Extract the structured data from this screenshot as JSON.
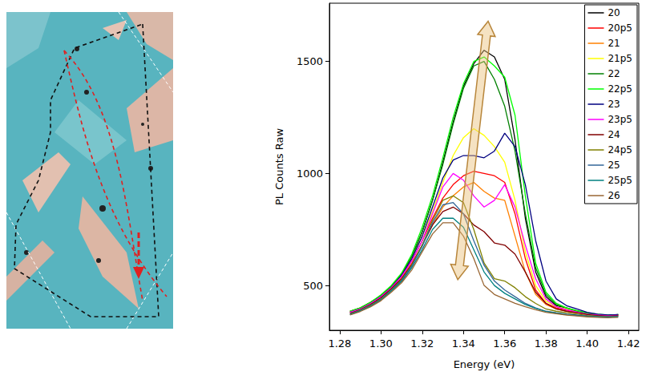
{
  "chart_data": {
    "type": "line",
    "x_label": "Energy (eV)",
    "y_label": "PL Counts Raw",
    "x": [
      1.285,
      1.29,
      1.295,
      1.3,
      1.305,
      1.31,
      1.315,
      1.32,
      1.325,
      1.33,
      1.335,
      1.34,
      1.345,
      1.35,
      1.355,
      1.36,
      1.365,
      1.37,
      1.375,
      1.38,
      1.385,
      1.39,
      1.395,
      1.4,
      1.405,
      1.41,
      1.415
    ],
    "series": [
      {
        "name": "20",
        "color": "#000000",
        "values": [
          385,
          400,
          425,
          455,
          495,
          550,
          630,
          740,
          880,
          1050,
          1230,
          1390,
          1490,
          1550,
          1520,
          1420,
          1150,
          800,
          560,
          450,
          410,
          400,
          385,
          375,
          370,
          365,
          370
        ]
      },
      {
        "name": "20p5",
        "color": "#ff0000",
        "values": [
          380,
          395,
          420,
          450,
          490,
          540,
          610,
          700,
          800,
          890,
          950,
          990,
          1010,
          1000,
          990,
          960,
          820,
          620,
          480,
          420,
          400,
          390,
          380,
          372,
          368,
          365,
          368
        ]
      },
      {
        "name": "21",
        "color": "#ff8000",
        "values": [
          380,
          395,
          418,
          448,
          485,
          535,
          600,
          680,
          770,
          850,
          900,
          940,
          960,
          920,
          890,
          880,
          720,
          560,
          460,
          415,
          395,
          385,
          378,
          370,
          366,
          364,
          366
        ]
      },
      {
        "name": "21p5",
        "color": "#ffff00",
        "values": [
          385,
          400,
          425,
          455,
          495,
          550,
          625,
          720,
          830,
          960,
          1080,
          1160,
          1200,
          1170,
          1120,
          1050,
          880,
          650,
          500,
          430,
          405,
          395,
          385,
          375,
          370,
          366,
          368
        ]
      },
      {
        "name": "22",
        "color": "#008000",
        "values": [
          385,
          400,
          425,
          455,
          495,
          550,
          630,
          740,
          880,
          1040,
          1220,
          1380,
          1480,
          1500,
          1420,
          1300,
          1100,
          820,
          580,
          460,
          415,
          400,
          385,
          375,
          370,
          366,
          368
        ]
      },
      {
        "name": "22p5",
        "color": "#00ff00",
        "values": [
          385,
          400,
          425,
          458,
          500,
          555,
          640,
          760,
          900,
          1070,
          1250,
          1400,
          1500,
          1520,
          1480,
          1430,
          1260,
          900,
          600,
          470,
          420,
          400,
          388,
          378,
          372,
          368,
          370
        ]
      },
      {
        "name": "23",
        "color": "#000080",
        "values": [
          380,
          395,
          420,
          450,
          490,
          545,
          620,
          720,
          850,
          980,
          1060,
          1080,
          1080,
          1070,
          1100,
          1180,
          1120,
          950,
          700,
          520,
          440,
          410,
          395,
          380,
          372,
          368,
          370
        ]
      },
      {
        "name": "23p5",
        "color": "#ff00ff",
        "values": [
          380,
          395,
          420,
          450,
          490,
          540,
          610,
          700,
          820,
          940,
          1000,
          970,
          900,
          850,
          880,
          950,
          850,
          680,
          530,
          440,
          405,
          392,
          382,
          372,
          368,
          365,
          367
        ]
      },
      {
        "name": "24",
        "color": "#800000",
        "values": [
          375,
          392,
          415,
          445,
          485,
          530,
          595,
          680,
          770,
          830,
          850,
          820,
          770,
          740,
          690,
          680,
          640,
          560,
          470,
          420,
          395,
          385,
          378,
          370,
          366,
          363,
          365
        ]
      },
      {
        "name": "24p5",
        "color": "#808000",
        "values": [
          372,
          390,
          412,
          440,
          480,
          525,
          590,
          680,
          790,
          880,
          900,
          870,
          750,
          600,
          530,
          520,
          490,
          450,
          420,
          395,
          385,
          378,
          372,
          366,
          363,
          361,
          363
        ]
      },
      {
        "name": "25",
        "color": "#336699",
        "values": [
          370,
          388,
          410,
          438,
          478,
          522,
          588,
          675,
          780,
          860,
          870,
          820,
          700,
          590,
          520,
          480,
          450,
          420,
          400,
          385,
          378,
          372,
          368,
          364,
          361,
          360,
          362
        ]
      },
      {
        "name": "25p5",
        "color": "#008080",
        "values": [
          370,
          386,
          408,
          436,
          475,
          518,
          580,
          660,
          750,
          800,
          800,
          760,
          660,
          560,
          500,
          465,
          440,
          415,
          398,
          384,
          376,
          370,
          366,
          362,
          360,
          358,
          360
        ]
      },
      {
        "name": "26",
        "color": "#996633",
        "values": [
          368,
          384,
          405,
          432,
          470,
          512,
          570,
          650,
          730,
          780,
          780,
          720,
          620,
          500,
          460,
          440,
          420,
          405,
          392,
          380,
          374,
          368,
          364,
          360,
          358,
          356,
          358
        ]
      }
    ],
    "xlim": [
      1.275,
      1.425
    ],
    "xticks": [
      1.28,
      {
        "value": 1.3,
        "label": "1.30"
      },
      1.32,
      1.34,
      1.36,
      1.38,
      {
        "value": 1.4,
        "label": "1.40"
      },
      1.42
    ],
    "ylim": [
      300,
      1760
    ],
    "yticks": [
      500,
      1000,
      1500
    ],
    "grid": false,
    "legend": "upper right",
    "line_style": "solid"
  }
}
